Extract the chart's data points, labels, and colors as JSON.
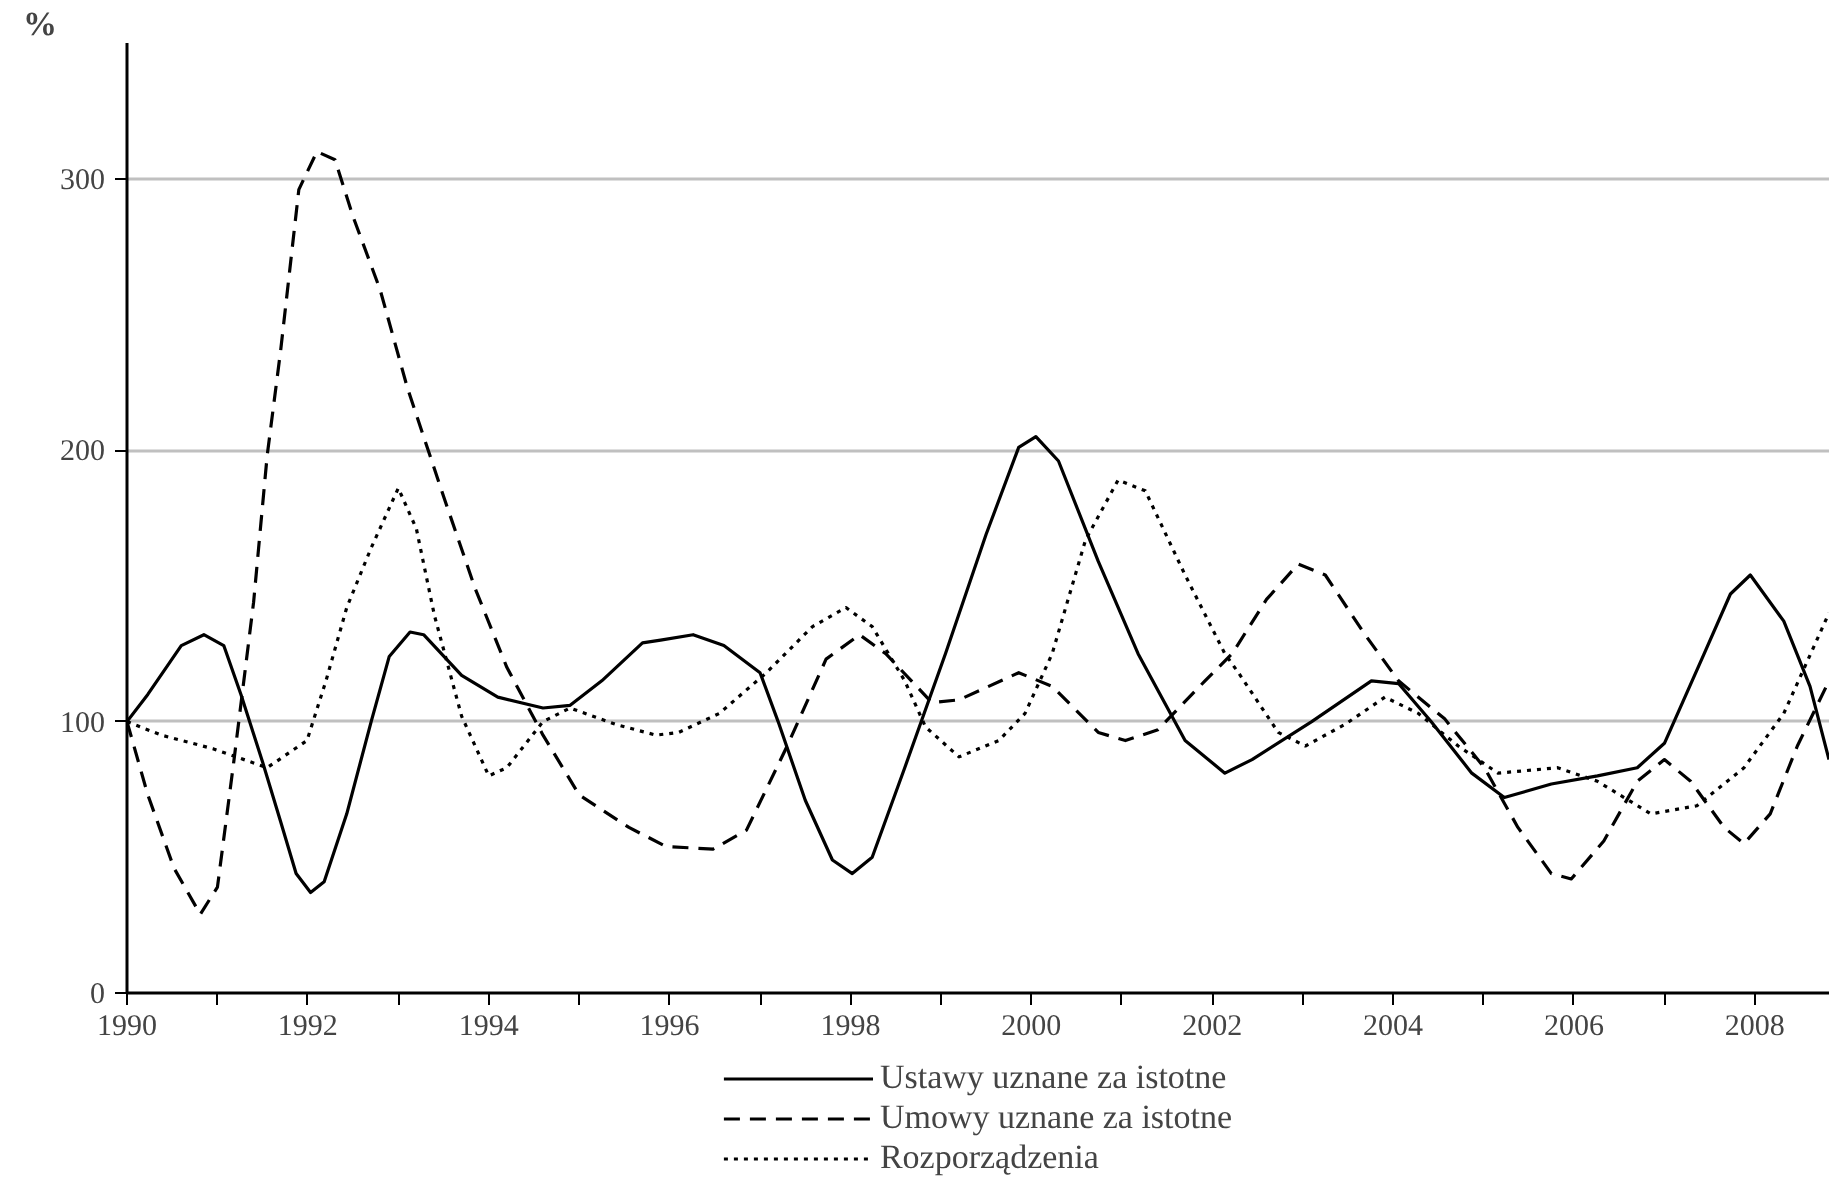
{
  "chart_data": {
    "type": "line",
    "ylabel": "%",
    "xlim": [
      1990,
      2008.82
    ],
    "ylim": [
      0,
      350
    ],
    "xticks": [
      1990,
      {
        "value": 1991,
        "label": null
      },
      1992,
      {
        "value": 1993,
        "label": null
      },
      1994,
      {
        "value": 1995,
        "label": null
      },
      1996,
      {
        "value": 1997,
        "label": null
      },
      1998,
      {
        "value": 1999,
        "label": null
      },
      2000,
      {
        "value": 2001,
        "label": null
      },
      2002,
      {
        "value": 2003,
        "label": null
      },
      2004,
      {
        "value": 2005,
        "label": null
      },
      2006,
      {
        "value": 2007,
        "label": null
      },
      2008
    ],
    "yticks": [
      0,
      100,
      200,
      300
    ],
    "grid": "y",
    "legend": "bottom",
    "marker": "none",
    "series": [
      {
        "name": "Ustawy uznane za istotne",
        "color": "#000000",
        "line_style": "solid",
        "x": [
          1990,
          1990.23,
          1990.6,
          1990.85,
          1991.07,
          1991.26,
          1991.5,
          1991.7,
          1991.87,
          1992.03,
          1992.18,
          1992.43,
          1992.7,
          1992.9,
          1993.13,
          1993.28,
          1993.7,
          1994.1,
          1994.6,
          1994.9,
          1995.25,
          1995.7,
          1995.9,
          1996.26,
          1996.6,
          1997.0,
          1997.2,
          1997.5,
          1997.8,
          1998.02,
          1998.24,
          1998.6,
          1999.05,
          1999.5,
          1999.86,
          2000.05,
          2000.3,
          2000.74,
          2001.18,
          2001.7,
          2002.14,
          2002.44,
          2003.1,
          2003.76,
          2004.06,
          2004.42,
          2004.87,
          2005.23,
          2005.75,
          2006.26,
          2006.7,
          2007.0,
          2007.44,
          2007.73,
          2007.95,
          2008.32,
          2008.61,
          2008.82
        ],
        "values": [
          100,
          110,
          128,
          132,
          128,
          110,
          85,
          63,
          44,
          37,
          41,
          66,
          100,
          124,
          133,
          132,
          117,
          109,
          105,
          106,
          115,
          129,
          130,
          132,
          128,
          118,
          100,
          71,
          49,
          44,
          50,
          83,
          125,
          169,
          201,
          205,
          196,
          159,
          125,
          93,
          81,
          86,
          100,
          115,
          114,
          100,
          81,
          72,
          77,
          80,
          83,
          92,
          125,
          147,
          154,
          137,
          113,
          86
        ]
      },
      {
        "name": "Umowy uznane za istotne",
        "color": "#000000",
        "line_style": "dashed",
        "x": [
          1990,
          1990.23,
          1990.52,
          1990.81,
          1991.0,
          1991.18,
          1991.4,
          1991.55,
          1991.7,
          1991.9,
          1992.1,
          1992.3,
          1992.5,
          1992.8,
          1993.1,
          1993.5,
          1993.85,
          1994.2,
          1994.6,
          1995.0,
          1995.55,
          1995.96,
          1996.48,
          1996.85,
          1997.3,
          1997.73,
          1998.1,
          1998.39,
          1998.9,
          1999.2,
          1999.86,
          2000.23,
          2000.74,
          2001.04,
          2001.4,
          2001.92,
          2002.22,
          2002.6,
          2002.95,
          2003.25,
          2003.69,
          2004.06,
          2004.57,
          2005.01,
          2005.38,
          2005.75,
          2005.97,
          2006.33,
          2006.7,
          2007.0,
          2007.29,
          2007.66,
          2007.88,
          2008.17,
          2008.47,
          2008.82
        ],
        "values": [
          100,
          73,
          46,
          29,
          39,
          85,
          144,
          198,
          237,
          296,
          310,
          307,
          286,
          259,
          223,
          183,
          149,
          120,
          95,
          73,
          61,
          54,
          53,
          60,
          91,
          123,
          132,
          125,
          107,
          108,
          118,
          113,
          96,
          93,
          97,
          115,
          125,
          145,
          158,
          154,
          132,
          115,
          101,
          83,
          61,
          44,
          42,
          56,
          78,
          86,
          78,
          61,
          55,
          66,
          91,
          115
        ]
      },
      {
        "name": "Rozporządzenia",
        "color": "#000000",
        "line_style": "dotted",
        "x": [
          1990,
          1990.38,
          1990.95,
          1991.55,
          1991.99,
          1992.2,
          1992.43,
          1992.7,
          1993.0,
          1993.2,
          1993.4,
          1993.7,
          1994.0,
          1994.2,
          1994.6,
          1994.9,
          1995.4,
          1995.85,
          1996.1,
          1996.55,
          1997.07,
          1997.58,
          1997.95,
          1998.24,
          1998.6,
          1998.83,
          1999.2,
          1999.64,
          1999.93,
          2000.23,
          2000.6,
          2000.96,
          2001.26,
          2001.7,
          2002.14,
          2002.29,
          2002.73,
          2003.03,
          2003.47,
          2003.91,
          2004.28,
          2004.72,
          2005.16,
          2005.82,
          2006.26,
          2006.85,
          2007.36,
          2007.88,
          2008.32,
          2008.82
        ],
        "values": [
          100,
          95,
          90,
          83,
          93,
          115,
          142,
          164,
          186,
          171,
          139,
          102,
          80,
          83,
          100,
          105,
          99,
          95,
          96,
          103,
          118,
          135,
          142,
          135,
          115,
          98,
          87,
          93,
          103,
          125,
          167,
          189,
          185,
          154,
          125,
          118,
          96,
          91,
          99,
          109,
          103,
          91,
          81,
          83,
          78,
          66,
          69,
          83,
          103,
          140
        ]
      }
    ]
  }
}
